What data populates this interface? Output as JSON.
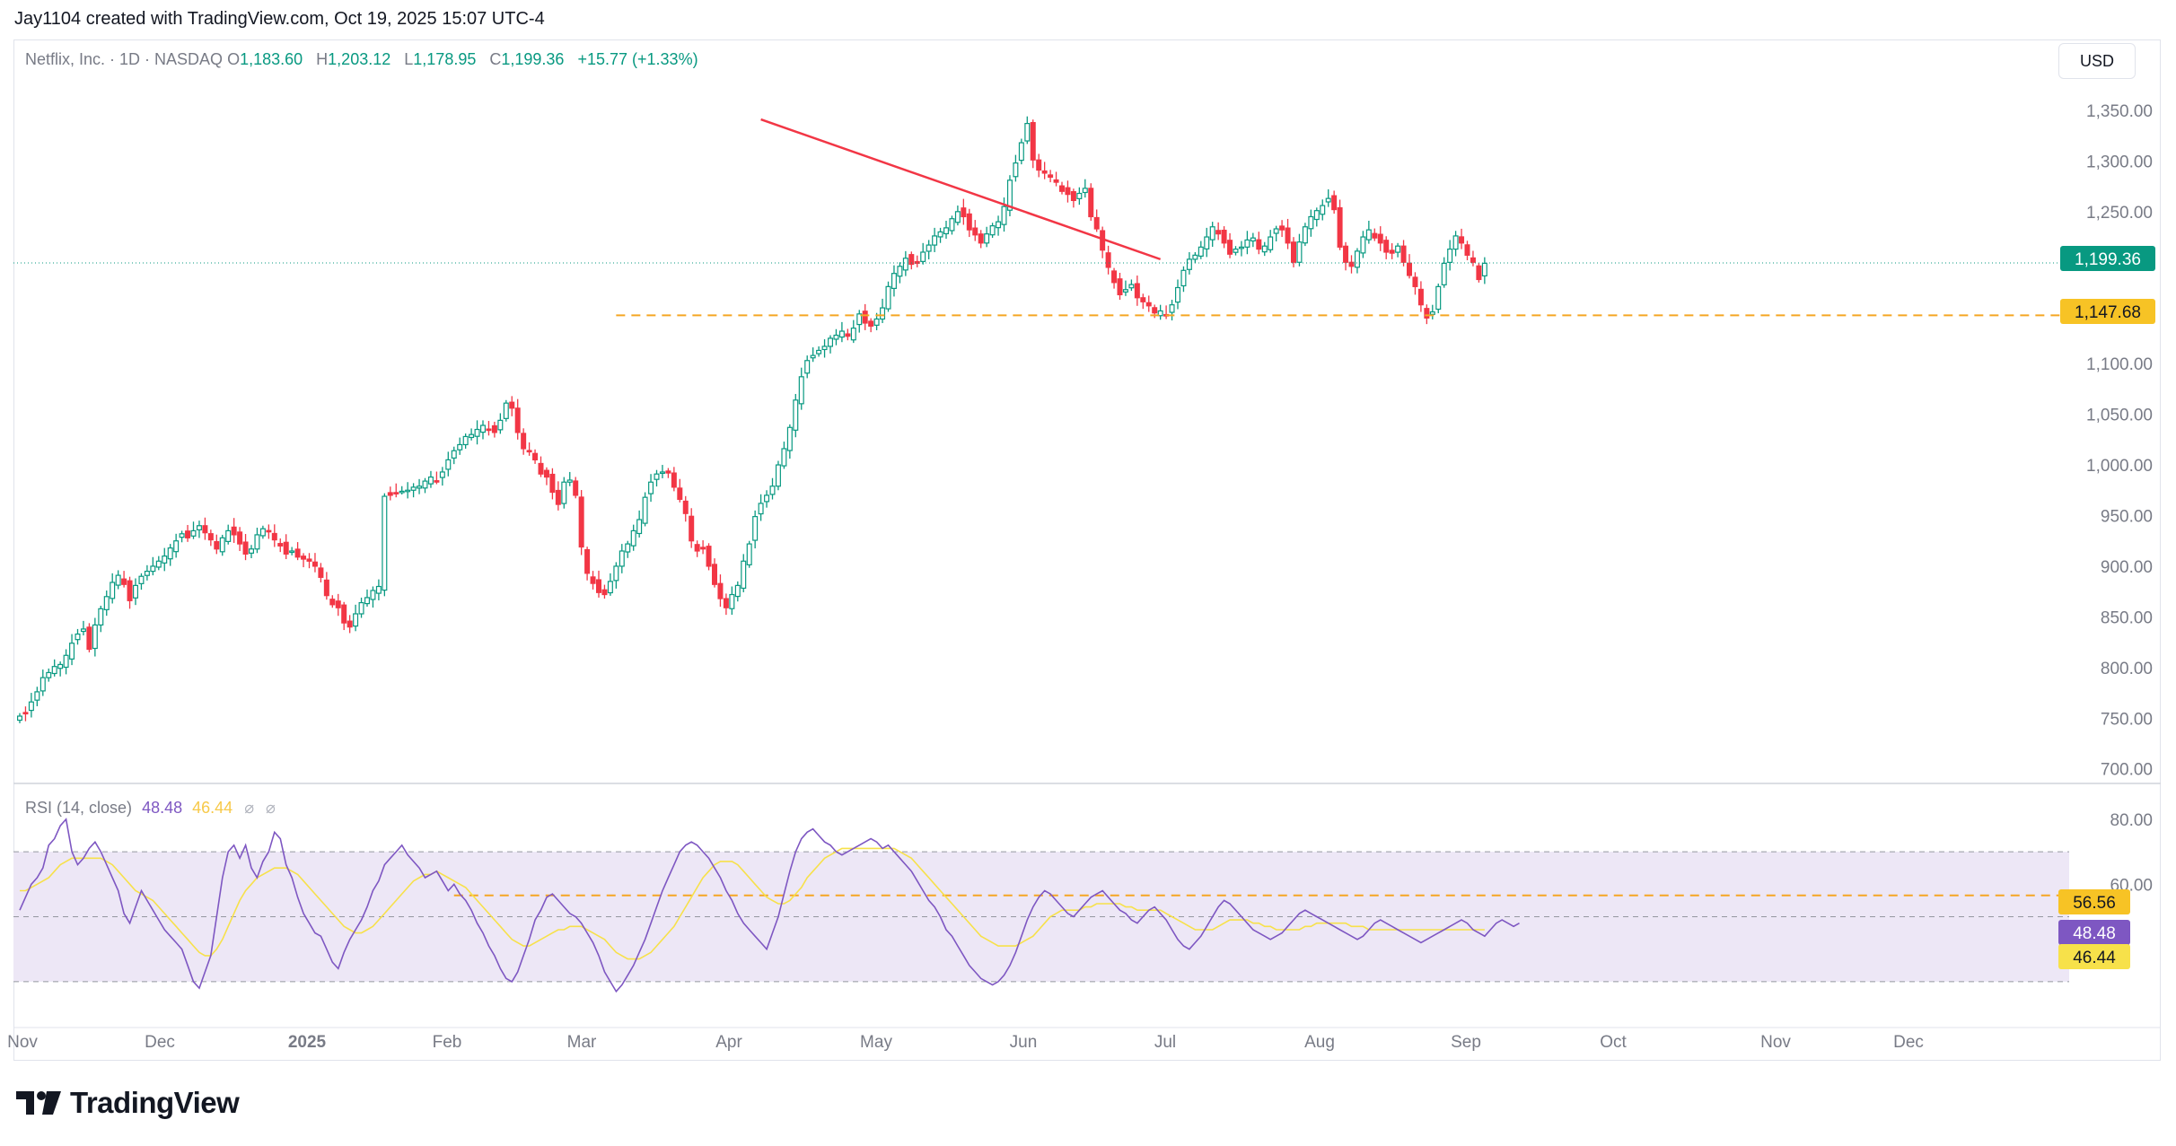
{
  "header": {
    "credit": "Jay1104 created with TradingView.com, Oct 19, 2025 15:07 UTC-4"
  },
  "legend": {
    "symbol": "Netflix, Inc. · 1D · NASDAQ",
    "o_label": "O",
    "o": "1,183.60",
    "h_label": "H",
    "h": "1,203.12",
    "l_label": "L",
    "l": "1,178.95",
    "c_label": "C",
    "c": "1,199.36",
    "change": "+15.77 (+1.33%)"
  },
  "currency": "USD",
  "rsi_legend": {
    "label": "RSI (14, close)",
    "rsi": "48.48",
    "ma": "46.44",
    "icon1": "⌀",
    "icon2": "⌀"
  },
  "price_badges": {
    "last": "1,199.36",
    "support": "1,147.68"
  },
  "rsi_badges": {
    "level": "56.56",
    "rsi": "48.48",
    "ma": "46.44"
  },
  "colors": {
    "up": "#089981",
    "down": "#f23645",
    "trend": "#f23645",
    "support": "#f5a623",
    "rsi": "#7e57c2",
    "rsi_ma": "#f7e14a",
    "rsi_band": "#ede7f6"
  },
  "footer": {
    "logo_text": "TradingView"
  },
  "chart_data": {
    "type": "candlestick",
    "price_axis": {
      "ticks": [
        "1,350.00",
        "1,300.00",
        "1,250.00",
        "1,100.00",
        "1,050.00",
        "1,000.00",
        "950.00",
        "900.00",
        "850.00",
        "800.00",
        "750.00",
        "700.00"
      ],
      "range": [
        690,
        1365
      ]
    },
    "rsi_axis": {
      "ticks": [
        "80.00",
        "60.00"
      ],
      "range": [
        25,
        83
      ],
      "band": [
        30,
        70
      ]
    },
    "x_axis": {
      "labels": [
        "Nov",
        "Dec",
        "2025",
        "Feb",
        "Mar",
        "Apr",
        "May",
        "Jun",
        "Jul",
        "Aug",
        "Sep",
        "Oct",
        "Nov",
        "Dec"
      ]
    },
    "trendline": {
      "from": [
        "2025-06-30",
        1341
      ],
      "to": [
        "2025-10-20",
        1203
      ]
    },
    "support_level": 1147.68,
    "rsi_level": 56.56,
    "last_price": 1199.36,
    "closes": [
      752,
      755,
      766,
      776,
      790,
      795,
      801,
      803,
      812,
      824,
      833,
      838,
      818,
      842,
      858,
      870,
      884,
      891,
      882,
      866,
      881,
      890,
      895,
      900,
      905,
      910,
      918,
      925,
      932,
      928,
      935,
      940,
      933,
      926,
      917,
      928,
      935,
      931,
      922,
      912,
      917,
      931,
      937,
      935,
      926,
      920,
      912,
      915,
      909,
      907,
      905,
      900,
      889,
      871,
      862,
      859,
      844,
      840,
      853,
      864,
      869,
      876,
      880,
      969,
      970,
      972,
      974,
      975,
      978,
      979,
      984,
      988,
      984,
      993,
      1005,
      1014,
      1020,
      1028,
      1030,
      1035,
      1039,
      1035,
      1032,
      1044,
      1061,
      1056,
      1032,
      1016,
      1014,
      1005,
      991,
      988,
      973,
      961,
      983,
      985,
      970,
      919,
      893,
      883,
      874,
      872,
      885,
      900,
      915,
      922,
      935,
      946,
      968,
      983,
      991,
      993,
      992,
      978,
      966,
      952,
      925,
      915,
      917,
      900,
      882,
      868,
      859,
      872,
      881,
      905,
      922,
      949,
      962,
      970,
      979,
      1000,
      1016,
      1037,
      1064,
      1087,
      1103,
      1108,
      1113,
      1117,
      1125,
      1128,
      1132,
      1127,
      1135,
      1149,
      1140,
      1137,
      1144,
      1155,
      1176,
      1189,
      1196,
      1204,
      1198,
      1199,
      1210,
      1217,
      1226,
      1230,
      1234,
      1243,
      1250,
      1245,
      1232,
      1227,
      1219,
      1228,
      1236,
      1240,
      1255,
      1281,
      1298,
      1318,
      1337,
      1301,
      1291,
      1288,
      1284,
      1279,
      1270,
      1267,
      1261,
      1268,
      1273,
      1245,
      1233,
      1212,
      1195,
      1180,
      1168,
      1173,
      1178,
      1165,
      1161,
      1157,
      1150,
      1152,
      1147,
      1158,
      1175,
      1192,
      1203,
      1207,
      1215,
      1225,
      1235,
      1228,
      1219,
      1208,
      1213,
      1215,
      1222,
      1224,
      1213,
      1216,
      1225,
      1233,
      1232,
      1219,
      1200,
      1220,
      1235,
      1245,
      1251,
      1256,
      1263,
      1252,
      1215,
      1200,
      1196,
      1211,
      1225,
      1232,
      1224,
      1219,
      1210,
      1209,
      1216,
      1200,
      1187,
      1176,
      1158,
      1145,
      1151,
      1176,
      1199,
      1213,
      1226,
      1219,
      1207,
      1200,
      1183,
      1199
    ],
    "rsi": [
      52,
      56,
      60,
      62,
      65,
      72,
      74,
      78,
      80,
      70,
      66,
      68,
      71,
      73,
      70,
      66,
      62,
      58,
      51,
      48,
      53,
      58,
      55,
      52,
      49,
      46,
      44,
      42,
      40,
      35,
      30,
      28,
      33,
      38,
      50,
      62,
      70,
      72,
      68,
      72,
      65,
      62,
      67,
      70,
      76,
      74,
      66,
      62,
      56,
      51,
      48,
      45,
      44,
      40,
      36,
      34,
      39,
      43,
      46,
      49,
      53,
      58,
      61,
      66,
      68,
      70,
      72,
      69,
      67,
      65,
      62,
      63,
      64,
      61,
      58,
      60,
      57,
      55,
      52,
      48,
      45,
      41,
      38,
      34,
      31,
      30,
      33,
      38,
      43,
      49,
      52,
      56,
      57,
      55,
      53,
      51,
      50,
      48,
      45,
      42,
      38,
      33,
      30,
      27,
      29,
      32,
      35,
      39,
      43,
      48,
      53,
      58,
      62,
      66,
      70,
      72,
      73,
      72,
      70,
      68,
      65,
      62,
      58,
      55,
      51,
      48,
      46,
      44,
      42,
      40,
      45,
      50,
      57,
      64,
      70,
      74,
      76,
      77,
      75,
      73,
      72,
      70,
      69,
      70,
      71,
      72,
      73,
      74,
      73,
      71,
      72,
      70,
      68,
      66,
      64,
      61,
      58,
      55,
      53,
      50,
      46,
      44,
      41,
      38,
      35,
      33,
      31,
      30,
      29,
      30,
      32,
      35,
      39,
      44,
      49,
      53,
      56,
      58,
      57,
      55,
      53,
      51,
      50,
      52,
      54,
      56,
      57,
      58,
      56,
      54,
      52,
      51,
      49,
      48,
      50,
      52,
      53,
      51,
      49,
      46,
      43,
      41,
      40,
      42,
      44,
      47,
      50,
      53,
      55,
      54,
      52,
      50,
      48,
      46,
      45,
      44,
      43,
      44,
      45,
      47,
      49,
      51,
      52,
      51,
      50,
      49,
      48,
      47,
      46,
      45,
      44,
      43,
      44,
      46,
      48,
      49,
      48,
      47,
      46,
      45,
      44,
      43,
      42,
      43,
      44,
      45,
      46,
      47,
      48,
      49,
      48,
      46,
      45,
      44,
      46,
      48,
      49,
      48,
      47,
      48
    ],
    "rsi_ma": [
      58,
      58,
      59,
      60,
      61,
      62,
      64,
      66,
      67,
      68,
      68,
      68,
      68,
      68,
      68,
      67,
      66,
      64,
      62,
      60,
      58,
      57,
      56,
      55,
      53,
      51,
      49,
      47,
      45,
      43,
      41,
      39,
      38,
      38,
      40,
      43,
      47,
      51,
      55,
      58,
      60,
      62,
      63,
      64,
      65,
      65,
      65,
      64,
      63,
      61,
      59,
      57,
      55,
      53,
      51,
      49,
      47,
      46,
      45,
      45,
      46,
      47,
      49,
      51,
      53,
      55,
      57,
      59,
      61,
      62,
      63,
      63,
      64,
      63,
      62,
      61,
      60,
      59,
      57,
      55,
      53,
      51,
      49,
      47,
      45,
      43,
      42,
      41,
      41,
      42,
      43,
      44,
      45,
      46,
      46,
      47,
      47,
      47,
      46,
      45,
      44,
      43,
      41,
      39,
      38,
      37,
      37,
      37,
      38,
      39,
      41,
      43,
      45,
      47,
      50,
      53,
      56,
      59,
      62,
      64,
      66,
      67,
      67,
      67,
      66,
      64,
      62,
      60,
      58,
      56,
      55,
      54,
      54,
      55,
      57,
      59,
      62,
      64,
      66,
      68,
      69,
      70,
      71,
      71,
      71,
      71,
      71,
      71,
      71,
      71,
      71,
      71,
      70,
      69,
      68,
      66,
      64,
      62,
      60,
      58,
      56,
      54,
      52,
      50,
      48,
      46,
      44,
      43,
      42,
      41,
      41,
      41,
      41,
      42,
      43,
      44,
      46,
      48,
      50,
      51,
      52,
      52,
      52,
      52,
      53,
      53,
      54,
      54,
      54,
      54,
      54,
      53,
      53,
      52,
      52,
      52,
      52,
      52,
      51,
      50,
      49,
      48,
      47,
      46,
      46,
      46,
      46,
      47,
      48,
      49,
      49,
      49,
      49,
      48,
      48,
      47,
      47,
      46,
      46,
      46,
      46,
      46,
      47,
      47,
      48,
      48,
      48,
      48,
      48,
      48,
      47,
      47,
      47,
      46,
      46,
      46,
      46,
      46,
      46,
      46,
      46,
      46,
      46,
      46,
      46,
      46,
      46,
      46,
      46,
      46,
      46,
      46,
      46,
      46
    ]
  }
}
